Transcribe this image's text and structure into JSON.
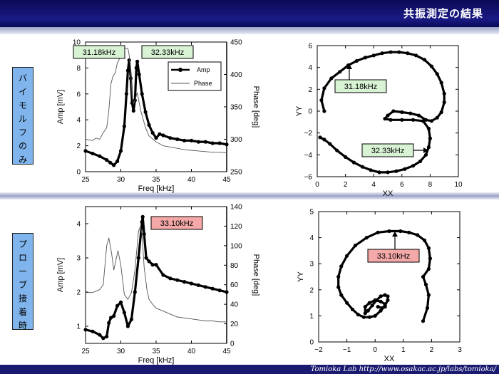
{
  "header": {
    "title": "共振測定の結果"
  },
  "footer": {
    "text": "Tomioka Lab   http://www.osakac.ac.jp/labs/tomioka/"
  },
  "labels": {
    "top": "バイモルフのみ",
    "bottom": "プローブ接着時"
  },
  "colors": {
    "header": "#14146e",
    "label_bg": "#7fb5ec",
    "freq_green": "#d8f2d4",
    "freq_red": "#f4a8a8"
  },
  "chart_data": [
    {
      "type": "line",
      "panel": "top-left",
      "xlabel": "Freq [kHz]",
      "ylabel": "Amp [mV]",
      "y2label": "Phase [deg]",
      "xlim": [
        25,
        45
      ],
      "ylim": [
        0,
        10
      ],
      "y2lim": [
        250,
        450
      ],
      "xticks": [
        25,
        30,
        35,
        40,
        45
      ],
      "yticks": [
        0,
        2,
        4,
        6,
        8,
        10
      ],
      "y2ticks": [
        250,
        300,
        350,
        400,
        450
      ],
      "legend": {
        "position": "top-right",
        "entries": [
          "Amp",
          "Phase"
        ]
      },
      "annotations": [
        "31.18kHz",
        "32.33kHz"
      ],
      "series": [
        {
          "name": "Amp",
          "axis": "left",
          "style": "dots",
          "x": [
            25,
            26,
            27,
            28,
            28.5,
            29,
            29.5,
            30,
            30.5,
            30.8,
            31,
            31.18,
            31.4,
            31.6,
            31.8,
            32,
            32.2,
            32.33,
            32.6,
            33,
            33.5,
            34,
            34.5,
            35,
            35.5,
            36,
            37,
            38,
            39,
            40,
            41,
            42,
            43,
            44,
            45
          ],
          "y": [
            1.6,
            1.4,
            1.2,
            0.9,
            0.7,
            0.5,
            0.8,
            1.6,
            3.5,
            6.0,
            7.8,
            8.6,
            7.2,
            5.3,
            4.7,
            5.5,
            8.0,
            8.5,
            7.5,
            6.0,
            4.6,
            3.6,
            3.0,
            2.6,
            2.9,
            2.8,
            2.6,
            2.5,
            2.4,
            2.4,
            2.3,
            2.3,
            2.2,
            2.2,
            2.1
          ]
        },
        {
          "name": "Phase",
          "axis": "right",
          "style": "line",
          "x": [
            25,
            26,
            26.5,
            27,
            27.5,
            28,
            28.3,
            28.6,
            28.9,
            29.2,
            29.5,
            30,
            30.3,
            30.6,
            31,
            31.18,
            31.4,
            31.6,
            31.8,
            32,
            32.33,
            32.8,
            33.5,
            34,
            35,
            36,
            37,
            38,
            39,
            40,
            41,
            42,
            43,
            44,
            45
          ],
          "y": [
            300,
            298,
            302,
            300,
            310,
            318,
            345,
            385,
            398,
            402,
            418,
            428,
            436,
            440,
            440,
            430,
            405,
            368,
            355,
            360,
            372,
            345,
            318,
            305,
            296,
            290,
            288,
            286,
            284,
            283,
            282,
            281,
            280,
            280,
            279
          ]
        }
      ]
    },
    {
      "type": "scatter",
      "panel": "top-right",
      "xlabel": "XX",
      "ylabel": "YY",
      "xlim": [
        0,
        10
      ],
      "ylim": [
        -6,
        6
      ],
      "xticks": [
        0,
        2,
        4,
        6,
        8,
        10
      ],
      "yticks": [
        -6,
        -4,
        -2,
        0,
        2,
        4,
        6
      ],
      "annotations": [
        "31.18kHz",
        "32.33kHz"
      ],
      "series": [
        {
          "name": "",
          "style": "dots",
          "x": [
            0.5,
            0.3,
            0.5,
            1.0,
            1.6,
            2.2,
            2.8,
            3.4,
            4.0,
            4.6,
            5.2,
            5.8,
            6.4,
            7.0,
            7.6,
            8.1,
            8.5,
            8.8,
            9.0,
            9.0,
            8.8,
            8.5,
            8.1,
            7.7,
            7.2,
            6.6,
            6.0,
            5.4,
            5.0,
            4.8,
            5.2,
            6.0,
            6.8,
            7.5,
            7.9,
            8.0,
            7.9,
            7.7,
            7.3,
            6.8,
            6.2,
            5.6,
            5.0,
            4.4,
            3.8,
            3.2,
            2.6,
            2.0,
            1.4,
            0.9,
            0.5,
            0.2
          ],
          "y": [
            0.0,
            1.0,
            2.1,
            3.0,
            3.6,
            4.2,
            4.6,
            4.9,
            5.1,
            5.3,
            5.4,
            5.4,
            5.3,
            5.1,
            4.7,
            4.1,
            3.4,
            2.6,
            1.6,
            0.8,
            -0.1,
            -0.6,
            -0.9,
            -0.8,
            -0.4,
            -0.2,
            -0.1,
            0.0,
            -0.4,
            -0.7,
            -0.8,
            -0.8,
            -0.8,
            -0.9,
            -1.6,
            -2.5,
            -3.3,
            -4.0,
            -4.6,
            -5.0,
            -5.3,
            -5.5,
            -5.6,
            -5.6,
            -5.4,
            -5.1,
            -4.7,
            -4.2,
            -3.6,
            -3.0,
            -2.6,
            -2.4
          ]
        }
      ]
    },
    {
      "type": "line",
      "panel": "bottom-left",
      "xlabel": "Freq [kHz]",
      "ylabel": "Amp [mV]",
      "y2label": "Phase [deg]",
      "xlim": [
        25,
        45
      ],
      "ylim": [
        0.5,
        4.5
      ],
      "y2lim": [
        0,
        140
      ],
      "xticks": [
        25,
        30,
        35,
        40,
        45
      ],
      "yticks": [
        1,
        2,
        3,
        4
      ],
      "y2ticks": [
        0,
        20,
        40,
        60,
        80,
        100,
        120,
        140
      ],
      "annotations": [
        "33.10kHz"
      ],
      "series": [
        {
          "name": "Amp",
          "axis": "left",
          "style": "dots",
          "x": [
            25,
            26,
            27,
            27.5,
            28,
            28.3,
            28.6,
            29,
            29.5,
            30,
            30.5,
            31,
            31.5,
            32,
            32.5,
            33,
            33.1,
            33.3,
            33.6,
            34,
            34.5,
            35,
            36,
            37,
            38,
            39,
            40,
            41,
            42,
            43,
            44,
            45
          ],
          "y": [
            0.9,
            0.85,
            0.75,
            0.65,
            0.7,
            1.1,
            1.25,
            1.3,
            1.6,
            1.7,
            1.4,
            1.0,
            1.2,
            2.0,
            3.0,
            4.05,
            4.2,
            3.7,
            3.0,
            2.9,
            2.8,
            2.8,
            2.5,
            2.4,
            2.35,
            2.3,
            2.25,
            2.2,
            2.15,
            2.1,
            2.05,
            2.0
          ]
        },
        {
          "name": "Phase",
          "axis": "right",
          "style": "line",
          "x": [
            25,
            26,
            27,
            27.5,
            28,
            28.3,
            28.7,
            29,
            29.3,
            29.6,
            30,
            30.5,
            31,
            31.5,
            32,
            32.5,
            32.8,
            33,
            33.3,
            33.7,
            34,
            34.5,
            35,
            36,
            37,
            38,
            39,
            40,
            41,
            42,
            43,
            44,
            45
          ],
          "y": [
            52,
            52,
            55,
            60,
            100,
            108,
            92,
            75,
            85,
            95,
            80,
            50,
            45,
            52,
            75,
            115,
            120,
            112,
            78,
            55,
            45,
            40,
            36,
            33,
            30,
            27,
            26,
            25,
            24,
            23,
            23,
            22,
            22
          ]
        }
      ]
    },
    {
      "type": "scatter",
      "panel": "bottom-right",
      "xlabel": "XX",
      "ylabel": "YY",
      "xlim": [
        -2,
        3
      ],
      "ylim": [
        0,
        5
      ],
      "xticks": [
        -2,
        -1,
        0,
        1,
        2,
        3
      ],
      "yticks": [
        0,
        1,
        2,
        3,
        4,
        5
      ],
      "annotations": [
        "33.10kHz"
      ],
      "series": [
        {
          "name": "",
          "style": "dots",
          "x": [
            1.7,
            1.85,
            1.9,
            1.8,
            1.7,
            1.9,
            1.95,
            1.9,
            1.75,
            1.5,
            1.2,
            0.9,
            0.5,
            0.1,
            -0.3,
            -0.7,
            -1.0,
            -1.2,
            -1.3,
            -1.3,
            -1.2,
            -1.0,
            -0.8,
            -0.6,
            -0.4,
            -0.2,
            0.0,
            0.2,
            0.35,
            0.45,
            0.45,
            0.35,
            0.2,
            0.05,
            -0.1,
            -0.25,
            -0.35,
            -0.35,
            -0.2,
            0.0,
            0.2,
            0.35,
            0.35,
            0.25,
            0.1
          ],
          "y": [
            0.8,
            1.3,
            1.8,
            2.2,
            2.5,
            2.8,
            3.2,
            3.6,
            3.9,
            4.1,
            4.2,
            4.25,
            4.25,
            4.2,
            4.0,
            3.7,
            3.3,
            2.9,
            2.5,
            2.1,
            1.8,
            1.5,
            1.25,
            1.05,
            0.95,
            0.95,
            1.0,
            1.2,
            1.4,
            1.6,
            1.75,
            1.8,
            1.75,
            1.6,
            1.4,
            1.2,
            1.1,
            1.35,
            1.5,
            1.6,
            1.55,
            1.45,
            1.35,
            1.3,
            1.35
          ]
        }
      ]
    }
  ]
}
